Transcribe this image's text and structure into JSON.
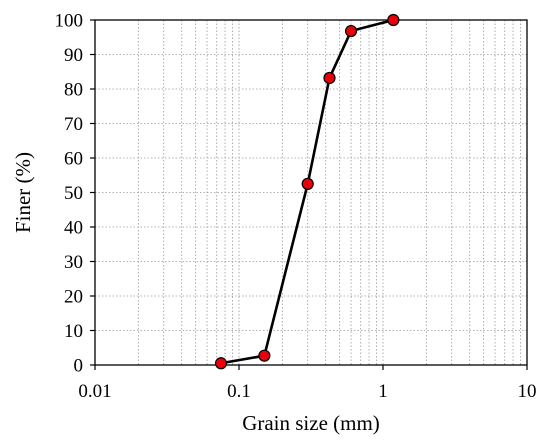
{
  "chart_data": {
    "type": "line",
    "title": "",
    "xlabel": "Grain size (mm)",
    "ylabel": "Finer (%)",
    "x_scale": "log",
    "xlim": [
      0.01,
      10
    ],
    "ylim": [
      0,
      100
    ],
    "x_ticks": [
      0.01,
      0.1,
      1,
      10
    ],
    "x_tick_labels": [
      "0.01",
      "0.1",
      "1",
      "10"
    ],
    "y_ticks": [
      0,
      10,
      20,
      30,
      40,
      50,
      60,
      70,
      80,
      90,
      100
    ],
    "y_tick_labels": [
      "0",
      "10",
      "20",
      "30",
      "40",
      "50",
      "60",
      "70",
      "80",
      "90",
      "100"
    ],
    "grid": true,
    "legend": "none",
    "series": [
      {
        "x": [
          0.075,
          0.15,
          0.3,
          0.425,
          0.6,
          1.18
        ],
        "y": [
          0.5,
          2.7,
          52.5,
          83.2,
          96.8,
          100
        ],
        "line_color": "#000000",
        "marker": "circle",
        "marker_fill": "#e8000b",
        "marker_edge": "#000000"
      }
    ]
  }
}
